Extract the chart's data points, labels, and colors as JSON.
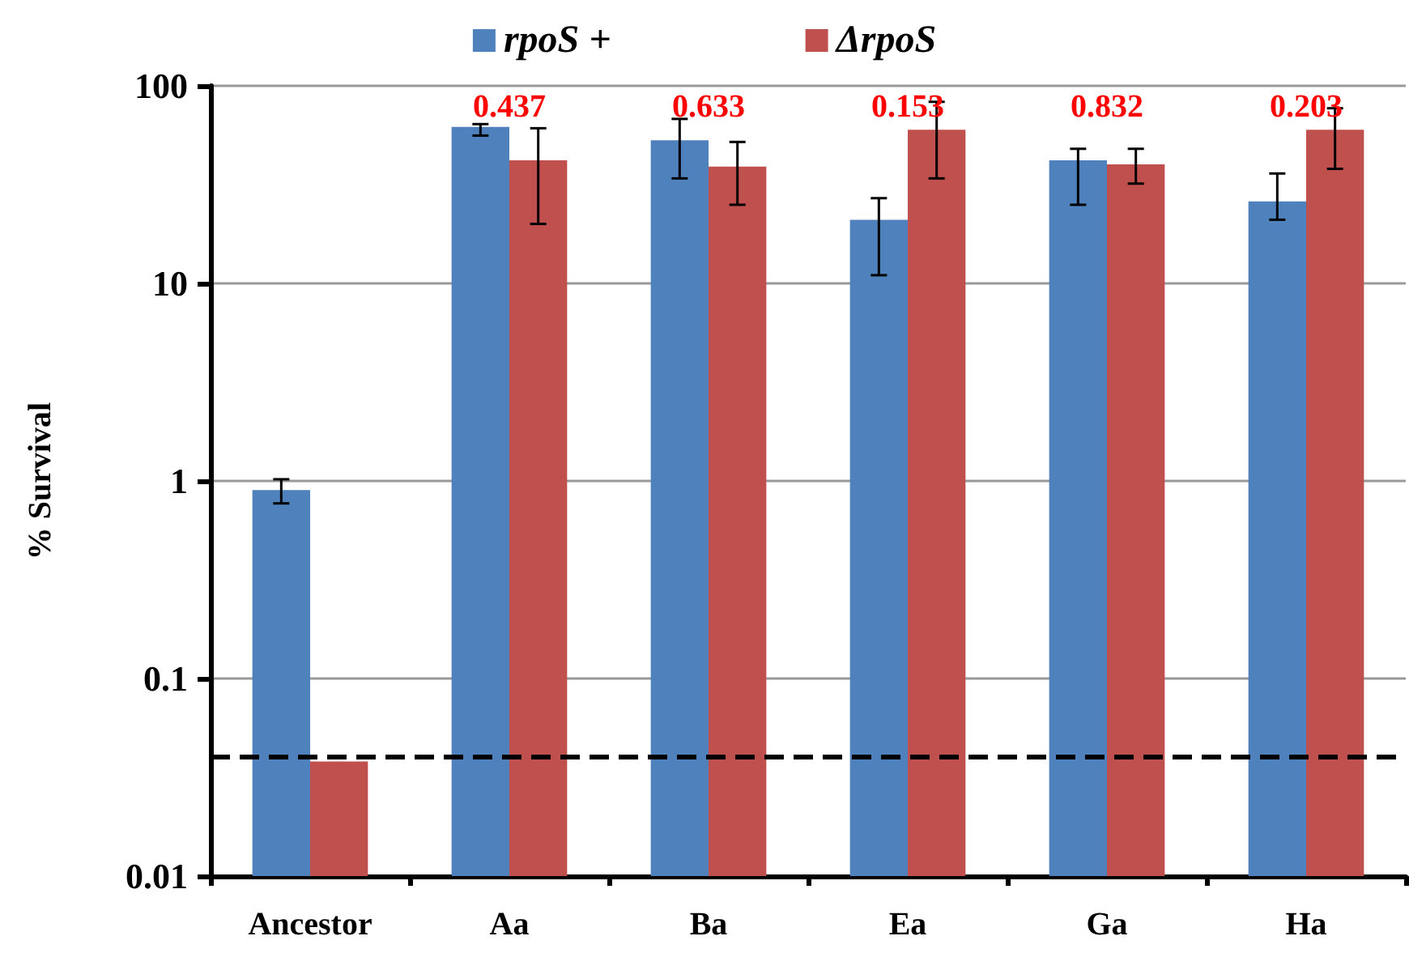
{
  "chart_data": {
    "type": "bar",
    "ylabel": "% Survival",
    "categories": [
      "Ancestor",
      "Aa",
      "Ba",
      "Ea",
      "Ga",
      "Ha"
    ],
    "series": [
      {
        "name": "rpoS +",
        "color": "#4f81bd",
        "values": [
          0.9,
          62,
          53,
          21,
          42,
          26
        ],
        "errors": [
          [
            0.77,
            1.02
          ],
          [
            56,
            64
          ],
          [
            34,
            68
          ],
          [
            11,
            27
          ],
          [
            25,
            48
          ],
          [
            21,
            36
          ]
        ]
      },
      {
        "name": "ΔrpoS",
        "color": "#c0504d",
        "values": [
          0.038,
          42,
          39,
          60,
          40,
          60
        ],
        "errors": [
          null,
          [
            20,
            61
          ],
          [
            25,
            52
          ],
          [
            34,
            83
          ],
          [
            32,
            48
          ],
          [
            38,
            77
          ]
        ]
      }
    ],
    "log": "y",
    "ylim": [
      0.01,
      100
    ],
    "yticks": [
      0.01,
      0.1,
      1,
      10,
      100
    ],
    "grid": "y",
    "legend": "top",
    "ref_lines": [
      {
        "axis": "y",
        "value": 0.04,
        "color": "#000000",
        "line_style": "dashed"
      }
    ],
    "annotations": [
      "0.437",
      "0.633",
      "0.153",
      "0.832",
      "0.203"
    ]
  }
}
